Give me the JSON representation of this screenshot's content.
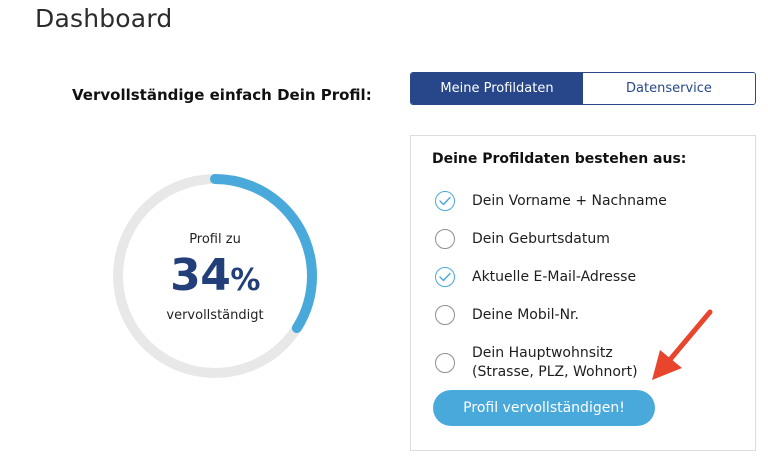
{
  "page": {
    "title": "Dashboard"
  },
  "profile": {
    "heading": "Vervollständige einfach Dein Profil:",
    "progress": {
      "label_pre": "Profil zu",
      "percent": 34,
      "percent_text": "34",
      "unit": "%",
      "label_post": "vervollständigt"
    }
  },
  "tabs": [
    {
      "label": "Meine Profildaten",
      "active": true
    },
    {
      "label": "Datenservice",
      "active": false
    }
  ],
  "card": {
    "title": "Deine Profildaten bestehen aus:",
    "items": [
      {
        "label": "Dein Vorname + Nachname",
        "done": true
      },
      {
        "label": "Dein Geburtsdatum",
        "done": false
      },
      {
        "label": "Aktuelle E-Mail-Adresse",
        "done": true
      },
      {
        "label": "Deine Mobil-Nr.",
        "done": false
      },
      {
        "label_line1": "Dein Hauptwohnsitz",
        "label_line2": "(Strasse, PLZ, Wohnort)",
        "done": false
      }
    ],
    "cta_label": "Profil vervollständigen!"
  },
  "colors": {
    "accent": "#4aa9db",
    "brand": "#27478a",
    "ring_track": "#e8e8e8",
    "arrow": "#e8452c"
  },
  "icons": {
    "done": "check-circle-icon",
    "todo": "empty-circle-icon",
    "pointer": "red-arrow-icon"
  }
}
